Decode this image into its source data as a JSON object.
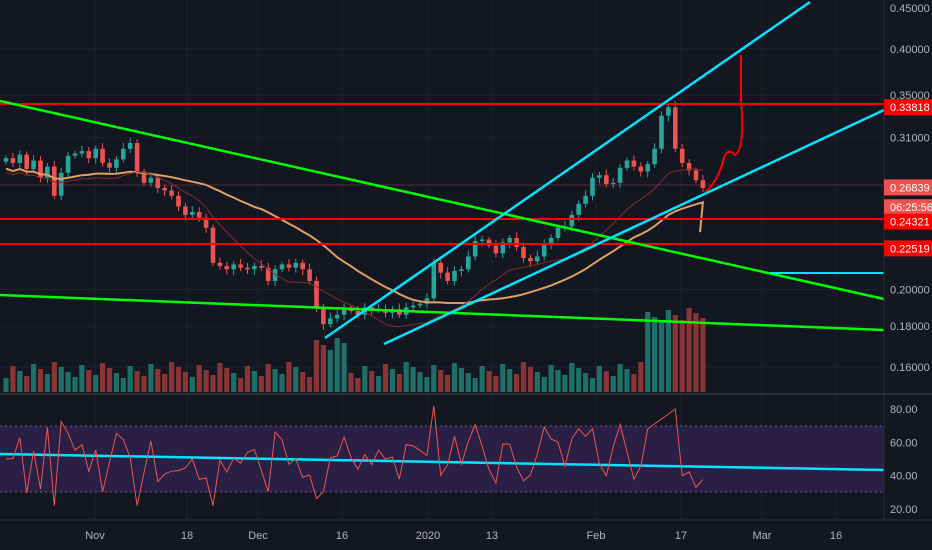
{
  "chart_data": {
    "type": "candlestick",
    "price_axis": {
      "ticks": [
        "0.45000",
        "0.40000",
        "0.35000",
        "0.31000",
        "0.20000",
        "0.18000",
        "0.16000"
      ],
      "tick_values": [
        0.45,
        0.4,
        0.35,
        0.31,
        0.2,
        0.18,
        0.16
      ],
      "scale": "log"
    },
    "x_axis": {
      "ticks": [
        "Nov",
        "18",
        "Dec",
        "16",
        "2020",
        "13",
        "Feb",
        "17",
        "Mar",
        "16"
      ]
    },
    "price_labels": [
      {
        "text": "0.33818",
        "value": 0.33818,
        "color": "#ff0000"
      },
      {
        "text": "0.26839",
        "value": 0.26839,
        "color": "#ef5350"
      },
      {
        "text": "06:25:56",
        "value": 0.2535,
        "color": "#ef5350"
      },
      {
        "text": "0.24321",
        "value": 0.24321,
        "color": "#ff0000"
      },
      {
        "text": "0.22519",
        "value": 0.22519,
        "color": "#ff0000"
      }
    ],
    "horizontal_lines": [
      0.33818,
      0.24321,
      0.22519
    ],
    "candles_close_approx": [
      0.292,
      0.288,
      0.295,
      0.283,
      0.29,
      0.276,
      0.285,
      0.262,
      0.28,
      0.294,
      0.296,
      0.298,
      0.292,
      0.3,
      0.288,
      0.284,
      0.291,
      0.3,
      0.305,
      0.281,
      0.272,
      0.276,
      0.268,
      0.266,
      0.262,
      0.254,
      0.248,
      0.25,
      0.246,
      0.239,
      0.216,
      0.214,
      0.212,
      0.215,
      0.213,
      0.212,
      0.214,
      0.213,
      0.205,
      0.212,
      0.215,
      0.213,
      0.216,
      0.212,
      0.205,
      0.19,
      0.181,
      0.184,
      0.186,
      0.19,
      0.188,
      0.186,
      0.19,
      0.189,
      0.189,
      0.187,
      0.189,
      0.186,
      0.19,
      0.191,
      0.192,
      0.195,
      0.216,
      0.21,
      0.205,
      0.211,
      0.212,
      0.22,
      0.23,
      0.231,
      0.227,
      0.222,
      0.229,
      0.232,
      0.226,
      0.219,
      0.217,
      0.22,
      0.228,
      0.232,
      0.239,
      0.24,
      0.248,
      0.256,
      0.262,
      0.276,
      0.278,
      0.271,
      0.272,
      0.284,
      0.29,
      0.285,
      0.281,
      0.287,
      0.3,
      0.33,
      0.338,
      0.3,
      0.288,
      0.282,
      0.274,
      0.268
    ],
    "rsi": {
      "ticks": [
        "80.00",
        "60.00",
        "40.00",
        "20.00"
      ],
      "tick_values": [
        80,
        60,
        40,
        20
      ],
      "band": [
        30,
        70
      ]
    },
    "colors": {
      "up": "#26a69a",
      "down": "#ef5350",
      "resistance": "#ff0000",
      "trend_green": "#00ff00",
      "channel": "#00e5ff",
      "ma_long": "#e0a060",
      "rsi_line": "#ef5350",
      "rsi_band": "#2a1f44"
    }
  }
}
